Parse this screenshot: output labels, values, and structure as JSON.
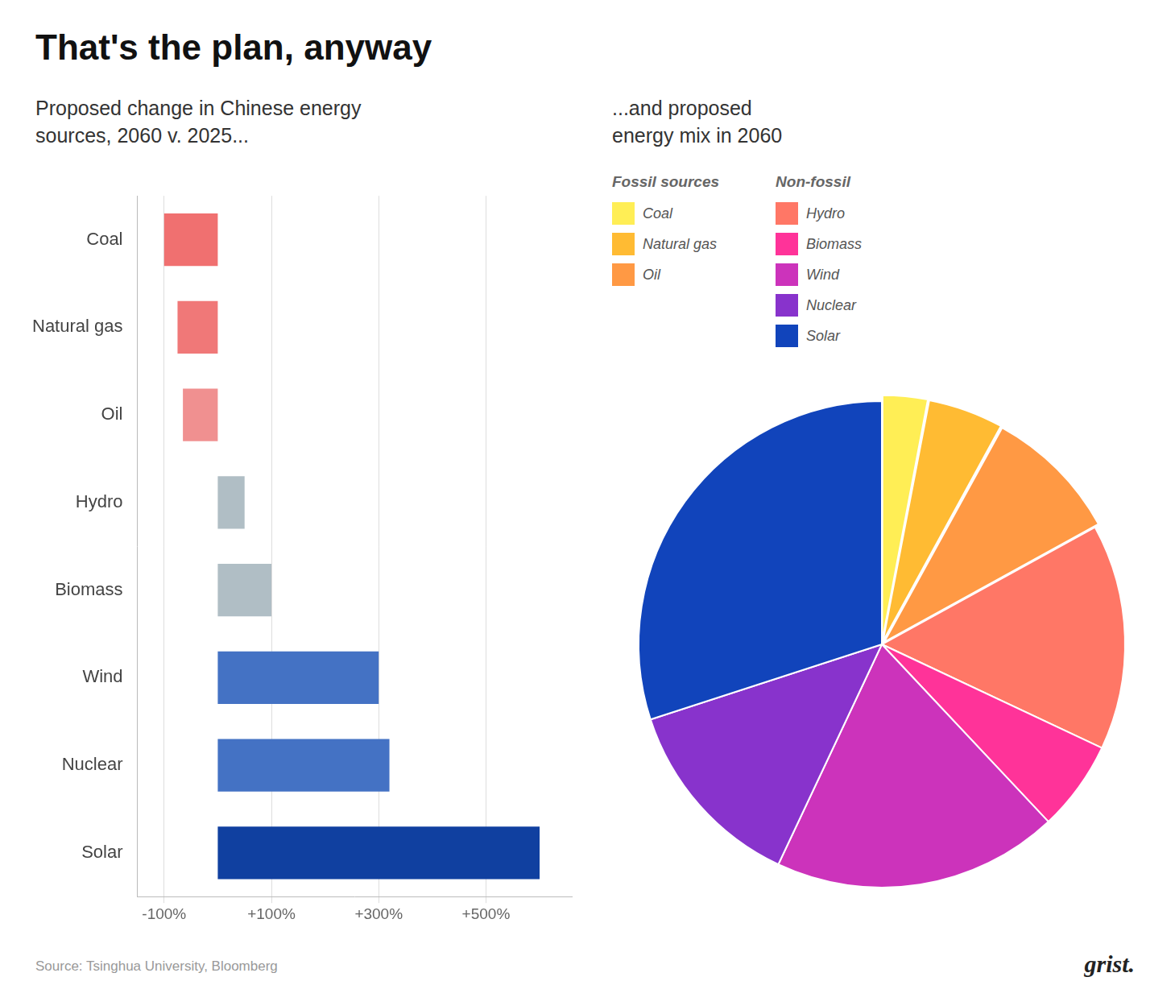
{
  "chart_data": [
    {
      "type": "bar",
      "title": "That's the plan, anyway",
      "subtitle": "Proposed change in Chinese energy\nsources, 2060 v. 2025...",
      "orientation": "horizontal",
      "categories": [
        "Coal",
        "Natural gas",
        "Oil",
        "Hydro",
        "Biomass",
        "Wind",
        "Nuclear",
        "Solar"
      ],
      "values": [
        -100,
        -75,
        -65,
        50,
        100,
        300,
        320,
        600
      ],
      "colors": [
        "#F07070",
        "#F07878",
        "#F09090",
        "#B0BEC5",
        "#B0BEC5",
        "#4472C4",
        "#4472C4",
        "#1040A0"
      ],
      "xlim": [
        -150,
        660
      ],
      "xticks": [
        {
          "value": -100,
          "label": "-100%"
        },
        {
          "value": 100,
          "label": "+100%"
        },
        {
          "value": 300,
          "label": "+300%"
        },
        {
          "value": 500,
          "label": "+500%"
        }
      ],
      "grid": true,
      "annotations": [
        "Source: Tsinghua University, Bloomberg",
        "grist."
      ]
    },
    {
      "type": "pie",
      "subtitle": "...and proposed\nenergy mix in 2060",
      "categories": [
        "Coal",
        "Natural gas",
        "Oil",
        "Hydro",
        "Biomass",
        "Wind",
        "Nuclear",
        "Solar"
      ],
      "values": [
        3,
        5,
        9,
        15,
        6,
        19,
        13,
        30
      ],
      "colors": [
        "#FFEE55",
        "#FFBB33",
        "#FF9944",
        "#FF7766",
        "#FF3399",
        "#CC33BB",
        "#8833CC",
        "#1144BB"
      ],
      "legend": "top",
      "legend_groups": [
        {
          "name": "Fossil sources",
          "categories": [
            "Coal",
            "Natural gas",
            "Oil"
          ]
        },
        {
          "name": "Non-fossil",
          "categories": [
            "Hydro",
            "Biomass",
            "Wind",
            "Nuclear",
            "Solar"
          ]
        }
      ]
    }
  ]
}
